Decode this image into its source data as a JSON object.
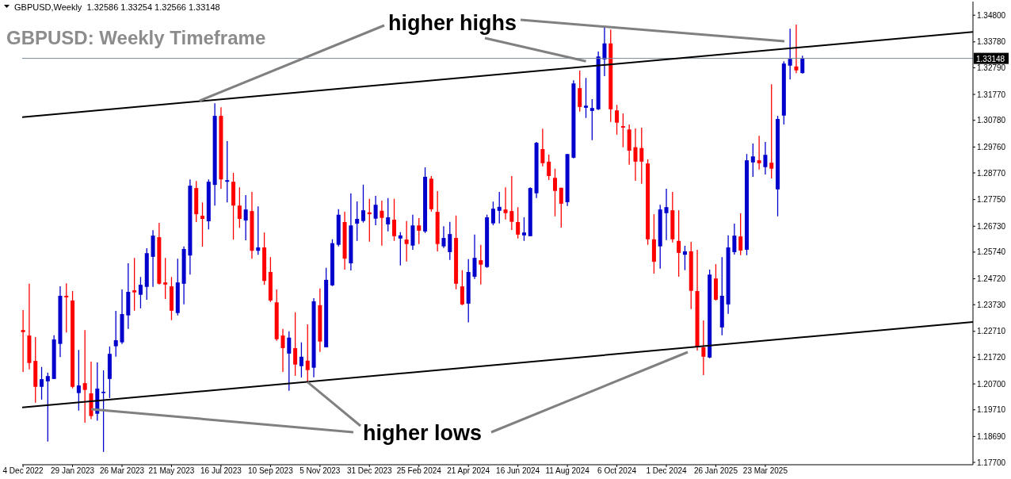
{
  "chart_data": {
    "type": "candlestick",
    "title": "GBPUSD: Weekly Timeframe",
    "annotations": [
      "GBPUSD,Weekly  1.32586 1.33254 1.32566 1.33148",
      {
        "text": "higher highs",
        "x": "2024-09-01",
        "y": 1.3304
      },
      {
        "text": "higher lows",
        "x": "2023-10-22",
        "y": 1.2077
      }
    ],
    "xlim": [
      "2022-12-03",
      "2025-11-13"
    ],
    "xticks": [
      {
        "value": "2022-12-04",
        "label": "4 Dec 2022"
      },
      {
        "value": "2023-01-29",
        "label": "29 Jan 2023"
      },
      {
        "value": "2023-03-26",
        "label": "26 Mar 2023"
      },
      {
        "value": "2023-05-21",
        "label": "21 May 2023"
      },
      {
        "value": "2023-07-16",
        "label": "16 Jul 2023"
      },
      {
        "value": "2023-09-10",
        "label": "10 Sep 2023"
      },
      {
        "value": "2023-11-05",
        "label": "5 Nov 2023"
      },
      {
        "value": "2023-12-31",
        "label": "31 Dec 2023"
      },
      {
        "value": "2024-02-25",
        "label": "25 Feb 2024"
      },
      {
        "value": "2024-04-21",
        "label": "21 Apr 2024"
      },
      {
        "value": "2024-06-16",
        "label": "16 Jun 2024"
      },
      {
        "value": "2024-08-11",
        "label": "11 Aug 2024"
      },
      {
        "value": "2024-10-06",
        "label": "6 Oct 2024"
      },
      {
        "value": "2024-12-01",
        "label": "1 Dec 2024"
      },
      {
        "value": "2025-01-26",
        "label": "26 Jan 2025"
      },
      {
        "value": "2025-03-23",
        "label": "23 Mar 2025"
      }
    ],
    "ylim": [
      1.1761,
      1.3532
    ],
    "yticks": [
      {
        "value": 1.348,
        "label": "1.34800"
      },
      {
        "value": 1.3378,
        "label": "1.33780"
      },
      {
        "value": 1.3279,
        "label": "1.32790"
      },
      {
        "value": 1.3177,
        "label": "1.31770"
      },
      {
        "value": 1.3078,
        "label": "1.30780"
      },
      {
        "value": 1.2976,
        "label": "1.29760"
      },
      {
        "value": 1.2877,
        "label": "1.28770"
      },
      {
        "value": 1.2775,
        "label": "1.27750"
      },
      {
        "value": 1.2673,
        "label": "1.26730"
      },
      {
        "value": 1.2574,
        "label": "1.25740"
      },
      {
        "value": 1.2472,
        "label": "1.24720"
      },
      {
        "value": 1.2373,
        "label": "1.23730"
      },
      {
        "value": 1.2271,
        "label": "1.22710"
      },
      {
        "value": 1.2172,
        "label": "1.21720"
      },
      {
        "value": 1.207,
        "label": "1.20700"
      },
      {
        "value": 1.1971,
        "label": "1.19710"
      },
      {
        "value": 1.1869,
        "label": "1.18690"
      },
      {
        "value": 1.177,
        "label": "1.17700"
      }
    ],
    "ref_lines": [
      {
        "axis": "y",
        "value": 1.33148,
        "label": "1.33148",
        "color": "#778899"
      }
    ],
    "series": [
      {
        "type": "candlestick",
        "x": [
          "2022-12-04",
          "2022-12-11",
          "2022-12-18",
          "2022-12-25",
          "2023-01-01",
          "2023-01-08",
          "2023-01-15",
          "2023-01-22",
          "2023-01-29",
          "2023-02-05",
          "2023-02-12",
          "2023-02-19",
          "2023-02-26",
          "2023-03-05",
          "2023-03-12",
          "2023-03-19",
          "2023-03-26",
          "2023-04-02",
          "2023-04-09",
          "2023-04-16",
          "2023-04-23",
          "2023-04-30",
          "2023-05-07",
          "2023-05-14",
          "2023-05-21",
          "2023-05-28",
          "2023-06-04",
          "2023-06-11",
          "2023-06-18",
          "2023-06-25",
          "2023-07-02",
          "2023-07-09",
          "2023-07-16",
          "2023-07-23",
          "2023-07-30",
          "2023-08-06",
          "2023-08-13",
          "2023-08-20",
          "2023-08-27",
          "2023-09-03",
          "2023-09-10",
          "2023-09-17",
          "2023-09-24",
          "2023-10-01",
          "2023-10-08",
          "2023-10-15",
          "2023-10-22",
          "2023-10-29",
          "2023-11-05",
          "2023-11-12",
          "2023-11-19",
          "2023-11-26",
          "2023-12-03",
          "2023-12-10",
          "2023-12-17",
          "2023-12-24",
          "2023-12-31",
          "2024-01-07",
          "2024-01-14",
          "2024-01-21",
          "2024-01-28",
          "2024-02-04",
          "2024-02-11",
          "2024-02-18",
          "2024-02-25",
          "2024-03-03",
          "2024-03-10",
          "2024-03-17",
          "2024-03-24",
          "2024-03-31",
          "2024-04-07",
          "2024-04-14",
          "2024-04-21",
          "2024-04-28",
          "2024-05-05",
          "2024-05-12",
          "2024-05-19",
          "2024-05-26",
          "2024-06-02",
          "2024-06-09",
          "2024-06-16",
          "2024-06-23",
          "2024-06-30",
          "2024-07-07",
          "2024-07-14",
          "2024-07-21",
          "2024-07-28",
          "2024-08-04",
          "2024-08-11",
          "2024-08-18",
          "2024-08-25",
          "2024-09-01",
          "2024-09-08",
          "2024-09-15",
          "2024-09-22",
          "2024-09-29",
          "2024-10-06",
          "2024-10-13",
          "2024-10-20",
          "2024-10-27",
          "2024-11-03",
          "2024-11-10",
          "2024-11-17",
          "2024-11-24",
          "2024-12-01",
          "2024-12-08",
          "2024-12-15",
          "2024-12-22",
          "2024-12-29",
          "2025-01-05",
          "2025-01-12",
          "2025-01-19",
          "2025-01-26",
          "2025-02-02",
          "2025-02-09",
          "2025-02-16",
          "2025-02-23",
          "2025-03-02",
          "2025-03-09",
          "2025-03-16",
          "2025-03-23",
          "2025-03-30",
          "2025-04-06",
          "2025-04-13",
          "2025-04-20",
          "2025-04-27",
          "2025-05-04"
        ],
        "ohlc": [
          [
            1.2276,
            1.2352,
            1.2116,
            1.2268
          ],
          [
            1.2255,
            1.2453,
            1.2126,
            1.215
          ],
          [
            1.2158,
            1.2249,
            1.1998,
            1.2059
          ],
          [
            1.2059,
            1.2135,
            1.201,
            1.2088
          ],
          [
            1.208,
            1.2113,
            1.185,
            1.21
          ],
          [
            1.2089,
            1.2256,
            1.2089,
            1.224
          ],
          [
            1.2223,
            1.2443,
            1.2173,
            1.2407
          ],
          [
            1.2407,
            1.2455,
            1.2267,
            1.2401
          ],
          [
            1.2389,
            1.2425,
            1.2053,
            1.2059
          ],
          [
            1.2035,
            1.22,
            1.1968,
            1.2064
          ],
          [
            1.2073,
            1.2276,
            1.1922,
            1.2047
          ],
          [
            1.2034,
            1.2155,
            1.1935,
            1.1947
          ],
          [
            1.1956,
            1.2152,
            1.1929,
            1.2052
          ],
          [
            1.2035,
            1.2122,
            1.181,
            1.204
          ],
          [
            1.2089,
            1.2213,
            1.2016,
            1.2185
          ],
          [
            1.2214,
            1.2349,
            1.2174,
            1.2237
          ],
          [
            1.2229,
            1.2431,
            1.2223,
            1.2337
          ],
          [
            1.2332,
            1.2531,
            1.228,
            1.2422
          ],
          [
            1.2428,
            1.2552,
            1.235,
            1.242
          ],
          [
            1.2411,
            1.2479,
            1.2359,
            1.2449
          ],
          [
            1.2441,
            1.2589,
            1.2392,
            1.257
          ],
          [
            1.2556,
            1.2658,
            1.2441,
            1.2637
          ],
          [
            1.2631,
            1.2686,
            1.245,
            1.2453
          ],
          [
            1.2458,
            1.2552,
            1.2395,
            1.245
          ],
          [
            1.2443,
            1.2479,
            1.2314,
            1.235
          ],
          [
            1.2341,
            1.2549,
            1.2332,
            1.2458
          ],
          [
            1.2453,
            1.2596,
            1.2374,
            1.2586
          ],
          [
            1.2561,
            1.2852,
            1.2488,
            1.2828
          ],
          [
            1.2819,
            1.2846,
            1.2689,
            1.2719
          ],
          [
            1.2713,
            1.2764,
            1.2595,
            1.2701
          ],
          [
            1.2692,
            1.2852,
            1.2661,
            1.2843
          ],
          [
            1.2831,
            1.3143,
            1.2752,
            1.3095
          ],
          [
            1.3095,
            1.3128,
            1.2816,
            1.2852
          ],
          [
            1.2843,
            1.2998,
            1.2764,
            1.2849
          ],
          [
            1.2843,
            1.2877,
            1.2622,
            1.2752
          ],
          [
            1.2752,
            1.2822,
            1.2667,
            1.2701
          ],
          [
            1.2695,
            1.2792,
            1.2619,
            1.2737
          ],
          [
            1.2731,
            1.2804,
            1.2549,
            1.2579
          ],
          [
            1.2579,
            1.2749,
            1.2564,
            1.2592
          ],
          [
            1.2592,
            1.2649,
            1.2449,
            1.2464
          ],
          [
            1.2498,
            1.2555,
            1.2383,
            1.2389
          ],
          [
            1.2382,
            1.2431,
            1.2235,
            1.2241
          ],
          [
            1.2255,
            1.228,
            1.2116,
            1.2207
          ],
          [
            1.2186,
            1.2271,
            1.2044,
            1.2247
          ],
          [
            1.2207,
            1.2344,
            1.2101,
            1.2144
          ],
          [
            1.2138,
            1.2229,
            1.2095,
            1.2174
          ],
          [
            1.2159,
            1.2298,
            1.2077,
            1.2123
          ],
          [
            1.2132,
            1.2398,
            1.2095,
            1.2386
          ],
          [
            1.2371,
            1.2435,
            1.2192,
            1.2232
          ],
          [
            1.221,
            1.2514,
            1.221,
            1.2468
          ],
          [
            1.2447,
            1.2623,
            1.2444,
            1.2608
          ],
          [
            1.2602,
            1.2738,
            1.2596,
            1.2717
          ],
          [
            1.2689,
            1.2728,
            1.2507,
            1.2549
          ],
          [
            1.2531,
            1.2799,
            1.2504,
            1.2676
          ],
          [
            1.2683,
            1.2768,
            1.2617,
            1.2701
          ],
          [
            1.2693,
            1.2832,
            1.2687,
            1.2734
          ],
          [
            1.2726,
            1.2778,
            1.2614,
            1.2719
          ],
          [
            1.2702,
            1.2789,
            1.2677,
            1.2755
          ],
          [
            1.2732,
            1.2771,
            1.2599,
            1.2705
          ],
          [
            1.268,
            1.2781,
            1.2653,
            1.2707
          ],
          [
            1.2698,
            1.2778,
            1.2617,
            1.2635
          ],
          [
            1.2626,
            1.265,
            1.2523,
            1.2638
          ],
          [
            1.2622,
            1.2693,
            1.2538,
            1.2605
          ],
          [
            1.2599,
            1.2717,
            1.2583,
            1.2676
          ],
          [
            1.2676,
            1.2704,
            1.2605,
            1.2656
          ],
          [
            1.2653,
            1.2898,
            1.2647,
            1.2862
          ],
          [
            1.2855,
            1.2865,
            1.2729,
            1.2738
          ],
          [
            1.2728,
            1.2807,
            1.2577,
            1.2605
          ],
          [
            1.2596,
            1.2673,
            1.259,
            1.2628
          ],
          [
            1.2574,
            1.269,
            1.2544,
            1.2643
          ],
          [
            1.2628,
            1.2714,
            1.2432,
            1.2453
          ],
          [
            1.2443,
            1.2505,
            1.2371,
            1.2374
          ],
          [
            1.2377,
            1.2547,
            1.2305,
            1.2498
          ],
          [
            1.248,
            1.2641,
            1.2471,
            1.2552
          ],
          [
            1.2543,
            1.2602,
            1.245,
            1.2526
          ],
          [
            1.2517,
            1.2717,
            1.2514,
            1.2707
          ],
          [
            1.2684,
            1.2767,
            1.2677,
            1.274
          ],
          [
            1.2732,
            1.2804,
            1.2684,
            1.2747
          ],
          [
            1.2737,
            1.2822,
            1.2699,
            1.2723
          ],
          [
            1.2731,
            1.2865,
            1.2659,
            1.269
          ],
          [
            1.2689,
            1.2746,
            1.2626,
            1.2641
          ],
          [
            1.2638,
            1.2707,
            1.2617,
            1.2649
          ],
          [
            1.2635,
            1.2822,
            1.2635,
            1.2819
          ],
          [
            1.2799,
            1.2995,
            1.2781,
            1.2992
          ],
          [
            1.2968,
            1.3046,
            1.2902,
            1.2914
          ],
          [
            1.292,
            1.2947,
            1.285,
            1.2865
          ],
          [
            1.2858,
            1.2893,
            1.2711,
            1.2808
          ],
          [
            1.282,
            1.282,
            1.2668,
            1.2759
          ],
          [
            1.2765,
            1.2949,
            1.275,
            1.2949
          ],
          [
            1.2935,
            1.3231,
            1.2932,
            1.3219
          ],
          [
            1.3201,
            1.3268,
            1.3111,
            1.3129
          ],
          [
            1.3126,
            1.324,
            1.3087,
            1.3134
          ],
          [
            1.3114,
            1.3159,
            1.3002,
            1.3125
          ],
          [
            1.312,
            1.3341,
            1.3117,
            1.3322
          ],
          [
            1.3311,
            1.3432,
            1.3247,
            1.3372
          ],
          [
            1.3372,
            1.3425,
            1.3072,
            1.312
          ],
          [
            1.3116,
            1.3137,
            1.3023,
            1.3069
          ],
          [
            1.3056,
            1.3104,
            1.2975,
            1.305
          ],
          [
            1.3043,
            1.3062,
            1.2908,
            1.2962
          ],
          [
            1.2975,
            1.3047,
            1.2847,
            1.292
          ],
          [
            1.2972,
            1.305,
            1.2835,
            1.292
          ],
          [
            1.2913,
            1.2929,
            1.2602,
            1.2623
          ],
          [
            1.2623,
            1.2719,
            1.2492,
            1.2537
          ],
          [
            1.2596,
            1.2755,
            1.2511,
            1.2737
          ],
          [
            1.2723,
            1.2816,
            1.262,
            1.2746
          ],
          [
            1.2734,
            1.2804,
            1.2611,
            1.2623
          ],
          [
            1.2617,
            1.2734,
            1.248,
            1.2571
          ],
          [
            1.2564,
            1.2598,
            1.2505,
            1.2577
          ],
          [
            1.2577,
            1.2613,
            1.2356,
            1.2426
          ],
          [
            1.2425,
            1.2583,
            1.2198,
            1.221
          ],
          [
            1.221,
            1.2313,
            1.2104,
            1.2174
          ],
          [
            1.2171,
            1.2507,
            1.2168,
            1.2488
          ],
          [
            1.2473,
            1.2528,
            1.2389,
            1.2392
          ],
          [
            1.2286,
            1.2555,
            1.2256,
            1.2407
          ],
          [
            1.2374,
            1.2638,
            1.2338,
            1.2592
          ],
          [
            1.2574,
            1.2683,
            1.2565,
            1.2637
          ],
          [
            1.2634,
            1.2722,
            1.2562,
            1.258
          ],
          [
            1.2583,
            1.2949,
            1.2562,
            1.2925
          ],
          [
            1.2917,
            1.2989,
            1.2862,
            1.294
          ],
          [
            1.2925,
            1.3019,
            1.289,
            1.2914
          ],
          [
            1.2899,
            1.2995,
            1.2871,
            1.2946
          ],
          [
            1.2916,
            1.3216,
            1.2856,
            1.2893
          ],
          [
            1.2814,
            1.3095,
            1.2711,
            1.3083
          ],
          [
            1.3096,
            1.3304,
            1.3062,
            1.3295
          ],
          [
            1.3287,
            1.3428,
            1.3234,
            1.3313
          ],
          [
            1.3284,
            1.3444,
            1.3258,
            1.3269
          ],
          [
            1.32586,
            1.33254,
            1.32566,
            1.33148
          ]
        ],
        "colors": [
          "#ff0000",
          "#ff0000",
          "#ff0000",
          "#0000cc",
          "#0000cc",
          "#0000cc",
          "#0000cc",
          "#ff0000",
          "#ff0000",
          "#0000cc",
          "#ff0000",
          "#ff0000",
          "#0000cc",
          "#0000cc",
          "#0000cc",
          "#0000cc",
          "#0000cc",
          "#0000cc",
          "#ff0000",
          "#0000cc",
          "#0000cc",
          "#0000cc",
          "#ff0000",
          "#ff0000",
          "#ff0000",
          "#0000cc",
          "#0000cc",
          "#0000cc",
          "#ff0000",
          "#ff0000",
          "#0000cc",
          "#0000cc",
          "#ff0000",
          "#0000cc",
          "#ff0000",
          "#ff0000",
          "#0000cc",
          "#ff0000",
          "#0000cc",
          "#ff0000",
          "#ff0000",
          "#ff0000",
          "#ff0000",
          "#0000cc",
          "#ff0000",
          "#0000cc",
          "#ff0000",
          "#0000cc",
          "#ff0000",
          "#0000cc",
          "#0000cc",
          "#0000cc",
          "#ff0000",
          "#0000cc",
          "#0000cc",
          "#0000cc",
          "#ff0000",
          "#0000cc",
          "#ff0000",
          "#0000cc",
          "#ff0000",
          "#0000cc",
          "#ff0000",
          "#0000cc",
          "#ff0000",
          "#0000cc",
          "#ff0000",
          "#ff0000",
          "#0000cc",
          "#0000cc",
          "#ff0000",
          "#ff0000",
          "#0000cc",
          "#0000cc",
          "#ff0000",
          "#0000cc",
          "#0000cc",
          "#0000cc",
          "#ff0000",
          "#ff0000",
          "#ff0000",
          "#0000cc",
          "#0000cc",
          "#0000cc",
          "#ff0000",
          "#ff0000",
          "#ff0000",
          "#ff0000",
          "#0000cc",
          "#0000cc",
          "#ff0000",
          "#0000cc",
          "#0000cc",
          "#0000cc",
          "#0000cc",
          "#ff0000",
          "#ff0000",
          "#ff0000",
          "#ff0000",
          "#ff0000",
          "#ff0000",
          "#ff0000",
          "#ff0000",
          "#0000cc",
          "#0000cc",
          "#ff0000",
          "#ff0000",
          "#0000cc",
          "#ff0000",
          "#ff0000",
          "#ff0000",
          "#0000cc",
          "#ff0000",
          "#0000cc",
          "#0000cc",
          "#0000cc",
          "#ff0000",
          "#0000cc",
          "#0000cc",
          "#ff0000",
          "#0000cc",
          "#ff0000",
          "#0000cc",
          "#0000cc",
          "#0000cc",
          "#ff0000",
          "#0000cc"
        ]
      },
      {
        "type": "line",
        "x": [
          "2022-12-03",
          "2025-11-13"
        ],
        "values": [
          1.309,
          1.3416
        ],
        "color": "#000000"
      },
      {
        "type": "line",
        "x": [
          "2022-12-03",
          "2025-11-13"
        ],
        "values": [
          1.198,
          1.2307
        ],
        "color": "#000000"
      }
    ]
  }
}
